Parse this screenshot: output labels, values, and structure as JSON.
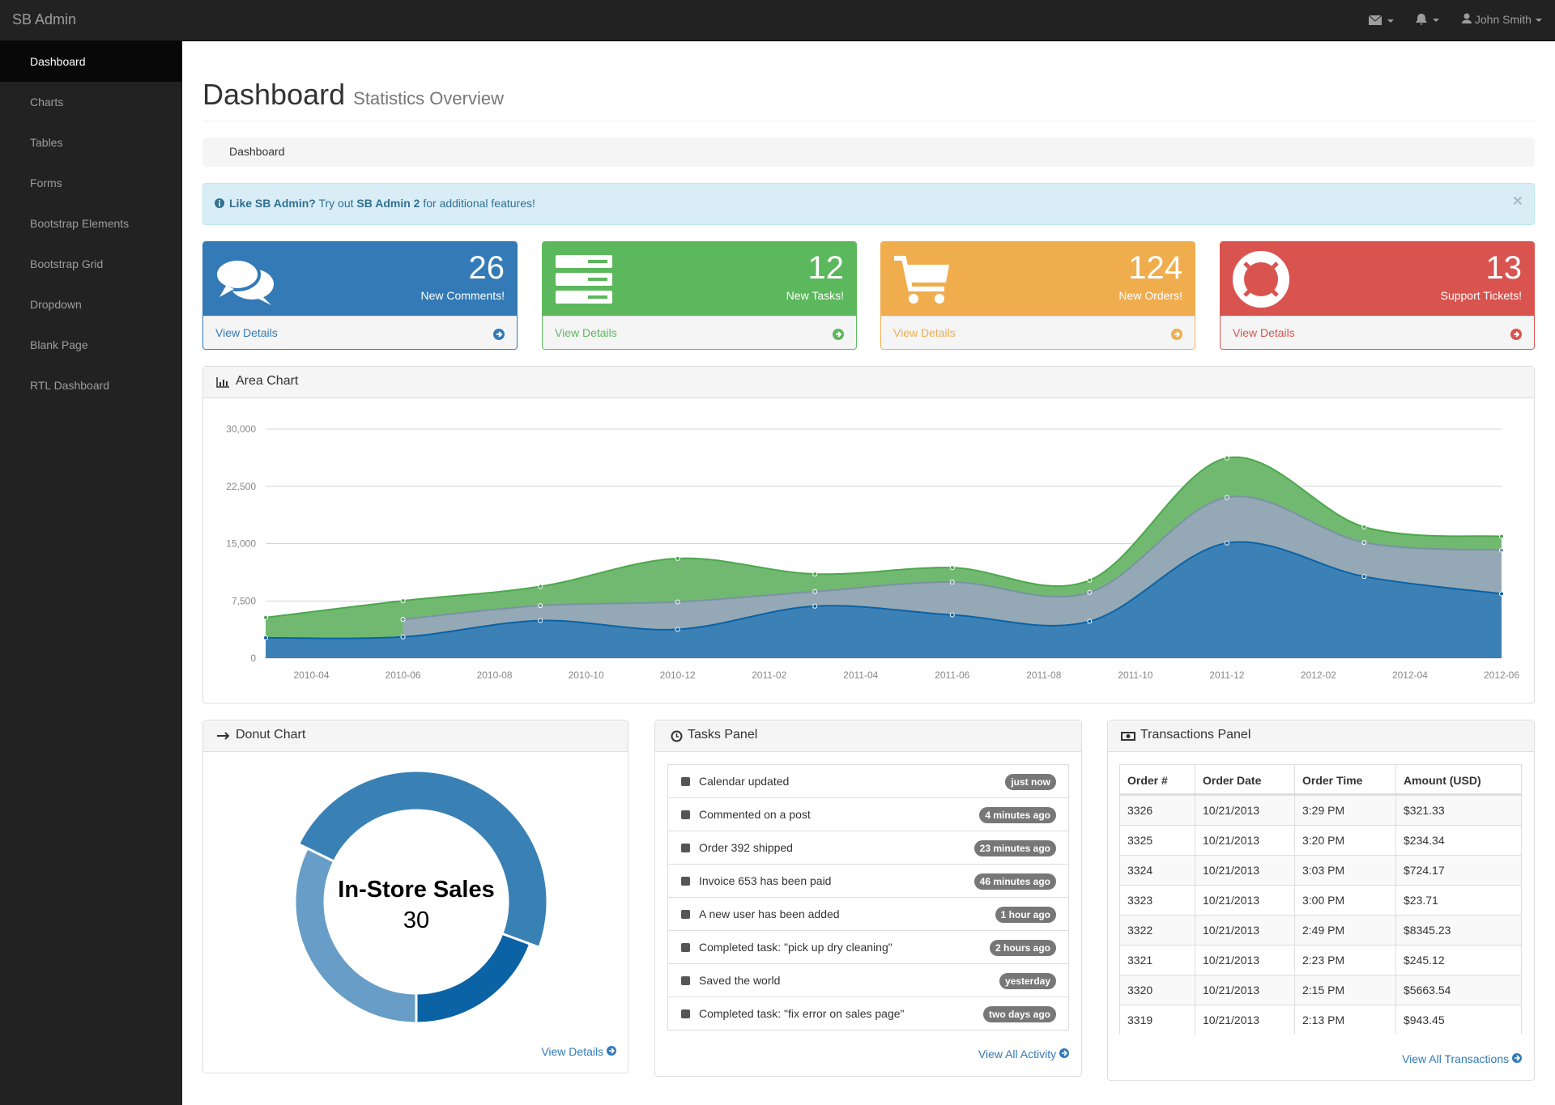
{
  "navbar": {
    "brand": "SB Admin",
    "user": "John Smith"
  },
  "sidebar": [
    "Dashboard",
    "Charts",
    "Tables",
    "Forms",
    "Bootstrap Elements",
    "Bootstrap Grid",
    "Dropdown",
    "Blank Page",
    "RTL Dashboard"
  ],
  "header": {
    "title": "Dashboard",
    "subtitle": "Statistics Overview"
  },
  "breadcrumb": "Dashboard",
  "alert": {
    "lead": "Like SB Admin?",
    "text1": " Try out ",
    "link": "SB Admin 2",
    "text2": " for additional features!",
    "close": "×"
  },
  "stat_panels": [
    {
      "count": 26,
      "label": "New Comments!",
      "link": "View Details",
      "color": "#337ab7"
    },
    {
      "count": 12,
      "label": "New Tasks!",
      "link": "View Details",
      "color": "#5cb85c"
    },
    {
      "count": 124,
      "label": "New Orders!",
      "link": "View Details",
      "color": "#f0ad4e"
    },
    {
      "count": 13,
      "label": "Support Tickets!",
      "link": "View Details",
      "color": "#d9534f"
    }
  ],
  "chart_data": [
    {
      "type": "area",
      "title": "Area Chart",
      "stacked": true,
      "grid": true,
      "x": [
        "2010-03",
        "2010-06",
        "2010-09",
        "2010-12",
        "2011-03",
        "2011-06",
        "2011-09",
        "2011-12",
        "2012-03",
        "2012-06"
      ],
      "series": [
        {
          "color": "#0b62a4",
          "values": [
            2666,
            2778,
            4912,
            3767,
            6810,
            5670,
            4820,
            15073,
            10687,
            8432
          ]
        },
        {
          "color": "#7a92a3",
          "values": [
            null,
            2294,
            1969,
            3597,
            1914,
            4293,
            3795,
            5967,
            4460,
            5713
          ]
        },
        {
          "color": "#4da74d",
          "values": [
            2647,
            2441,
            2501,
            5689,
            2293,
            1881,
            1588,
            5175,
            2028,
            1791
          ]
        }
      ],
      "xlim": [
        "2010-03",
        "2012-06"
      ],
      "xticks": [
        "2010-04",
        "2010-06",
        "2010-08",
        "2010-10",
        "2010-12",
        "2011-02",
        "2011-04",
        "2011-06",
        "2011-08",
        "2011-10",
        "2011-12",
        "2012-02",
        "2012-04",
        "2012-06"
      ],
      "ylim": [
        0,
        30000
      ],
      "yticks": [
        0,
        {
          "value": 7500,
          "label": "7,500"
        },
        {
          "value": 15000,
          "label": "15,000"
        },
        {
          "value": 22500,
          "label": "22,500"
        },
        {
          "value": 30000,
          "label": "30,000"
        }
      ]
    },
    {
      "type": "donut",
      "title": "Donut Chart",
      "categories": [
        null,
        "In-Store Sales",
        null
      ],
      "values": [
        12,
        30,
        20
      ],
      "colors": [
        "#0b62a4",
        "#3980b5",
        "#679dc6"
      ],
      "highlight": 1,
      "link": "View Details"
    }
  ],
  "tasks": {
    "title": "Tasks Panel",
    "link": "View All Activity",
    "items": [
      {
        "text": "Calendar updated",
        "time": "just now"
      },
      {
        "text": "Commented on a post",
        "time": "4 minutes ago"
      },
      {
        "text": "Order 392 shipped",
        "time": "23 minutes ago"
      },
      {
        "text": "Invoice 653 has been paid",
        "time": "46 minutes ago"
      },
      {
        "text": "A new user has been added",
        "time": "1 hour ago"
      },
      {
        "text": "Completed task: \"pick up dry cleaning\"",
        "time": "2 hours ago"
      },
      {
        "text": "Saved the world",
        "time": "yesterday"
      },
      {
        "text": "Completed task: \"fix error on sales page\"",
        "time": "two days ago"
      }
    ]
  },
  "transactions": {
    "title": "Transactions Panel",
    "link": "View All Transactions",
    "columns": [
      "Order #",
      "Order Date",
      "Order Time",
      "Amount (USD)"
    ],
    "rows": [
      [
        "3326",
        "10/21/2013",
        "3:29 PM",
        "$321.33"
      ],
      [
        "3325",
        "10/21/2013",
        "3:20 PM",
        "$234.34"
      ],
      [
        "3324",
        "10/21/2013",
        "3:03 PM",
        "$724.17"
      ],
      [
        "3323",
        "10/21/2013",
        "3:00 PM",
        "$23.71"
      ],
      [
        "3322",
        "10/21/2013",
        "2:49 PM",
        "$8345.23"
      ],
      [
        "3321",
        "10/21/2013",
        "2:23 PM",
        "$245.12"
      ],
      [
        "3320",
        "10/21/2013",
        "2:15 PM",
        "$5663.54"
      ],
      [
        "3319",
        "10/21/2013",
        "2:13 PM",
        "$943.45"
      ]
    ]
  }
}
